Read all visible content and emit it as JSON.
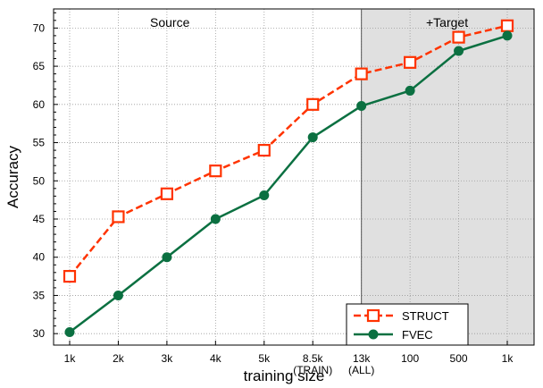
{
  "chart_data": {
    "type": "line",
    "x": [
      "1k",
      "2k",
      "3k",
      "4k",
      "5k",
      "8.5k",
      "13k",
      "100",
      "500",
      "1k"
    ],
    "x_sublabels": [
      "",
      "",
      "",
      "",
      "",
      "(TRAIN)",
      "(ALL)",
      "",
      "",
      ""
    ],
    "series": [
      {
        "name": "STRUCT",
        "color": "#ff3300",
        "line_style": "dashed",
        "marker": "open-square",
        "values": [
          37.5,
          45.3,
          48.3,
          51.3,
          54.0,
          60.0,
          64.0,
          65.5,
          68.8,
          70.3
        ]
      },
      {
        "name": "FVEC",
        "color": "#0b7041",
        "line_style": "solid",
        "marker": "filled-circle",
        "values": [
          30.2,
          35.0,
          40.0,
          45.0,
          48.1,
          55.7,
          59.8,
          61.8,
          67.0,
          69.0
        ]
      }
    ],
    "xlabel": "training size",
    "ylabel": "Accuracy",
    "ylim": [
      28.5,
      72.5
    ],
    "yticks": [
      30,
      35,
      40,
      45,
      50,
      55,
      60,
      65,
      70
    ],
    "grid": true,
    "legend_position": "bottom-right",
    "regions": [
      {
        "label": "Source",
        "from_index": 0,
        "to_index": 6,
        "shaded": false
      },
      {
        "label": "+Target",
        "from_index": 6,
        "to_index": 9,
        "shaded": true,
        "fill": "#e0e0e0"
      }
    ]
  }
}
